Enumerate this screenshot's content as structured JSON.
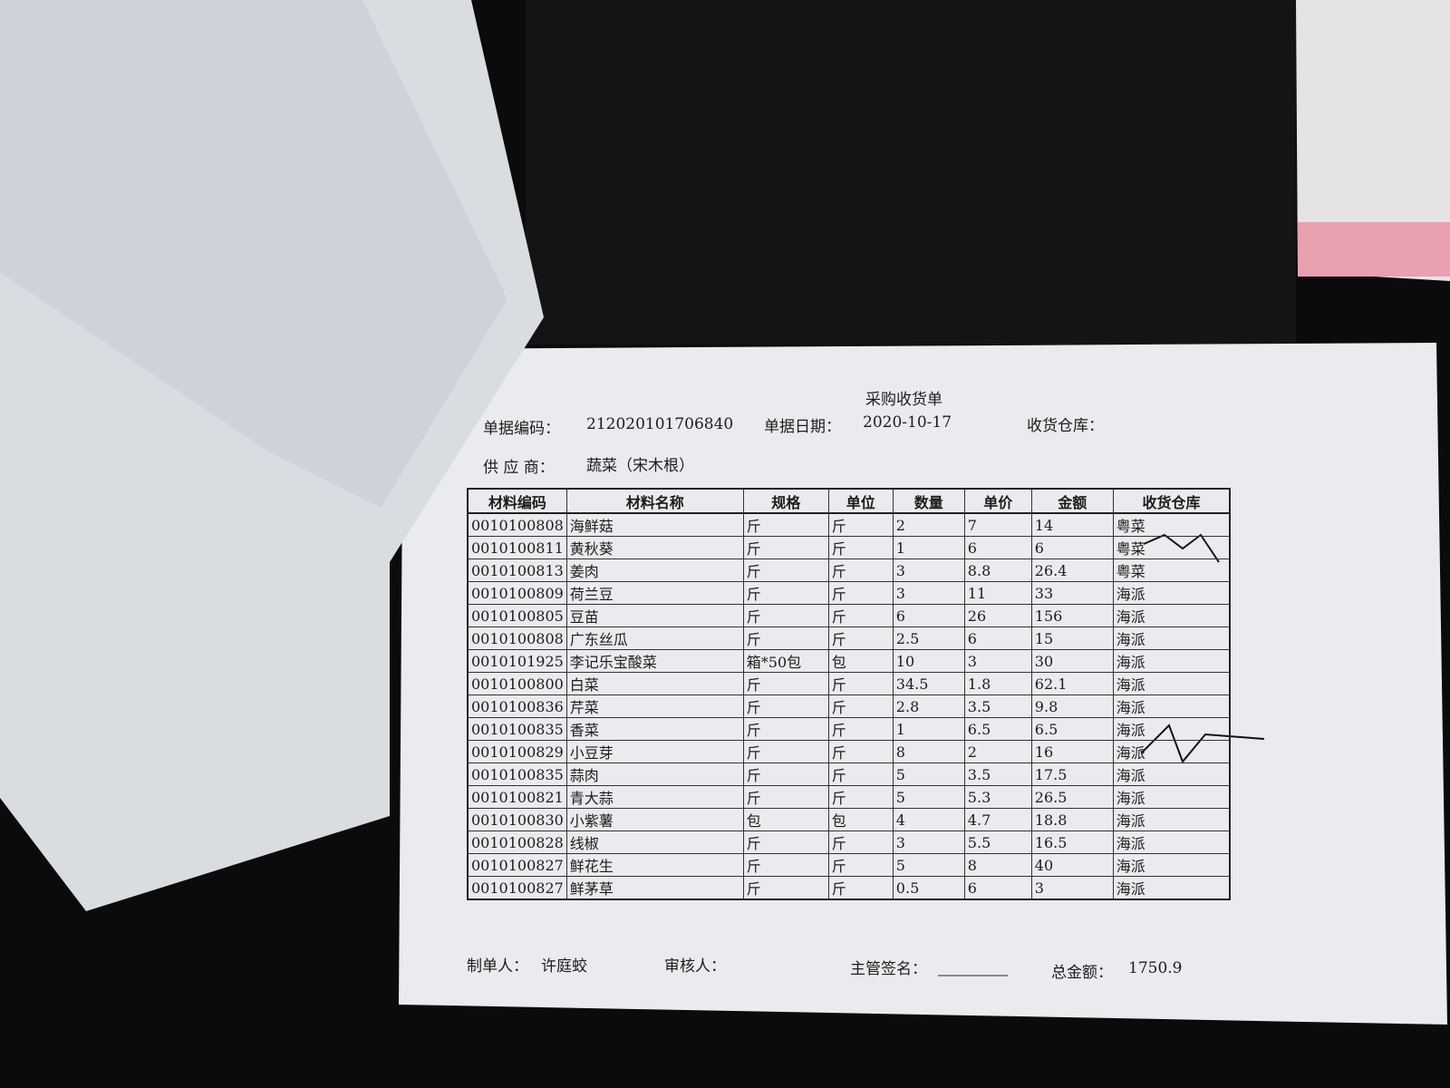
{
  "document": {
    "title": "采购收货单",
    "fields": [
      {
        "label": "单据编码：",
        "value": "212020101706840"
      },
      {
        "label": "单据日期：",
        "value": "2020-10-17"
      },
      {
        "label": "收货仓库："
      },
      {
        "label": "供 应 商：",
        "value": "蔬菜（宋木根）"
      }
    ],
    "table": {
      "columns": [
        "材料编码",
        "材料名称",
        "规格",
        "单位",
        "数量",
        "单价",
        "金额",
        "收货仓库"
      ],
      "rows": [
        [
          "0010100808",
          "海鲜菇",
          "斤",
          "斤",
          "2",
          "7",
          "14",
          "粤菜"
        ],
        [
          "0010100811",
          "黄秋葵",
          "斤",
          "斤",
          "1",
          "6",
          "6",
          "粤菜"
        ],
        [
          "0010100813",
          "姜肉",
          "斤",
          "斤",
          "3",
          "8.8",
          "26.4",
          "粤菜"
        ],
        [
          "0010100809",
          "荷兰豆",
          "斤",
          "斤",
          "3",
          "11",
          "33",
          "海派"
        ],
        [
          "0010100805",
          "豆苗",
          "斤",
          "斤",
          "6",
          "26",
          "156",
          "海派"
        ],
        [
          "0010100808",
          "广东丝瓜",
          "斤",
          "斤",
          "2.5",
          "6",
          "15",
          "海派"
        ],
        [
          "0010101925",
          "李记乐宝酸菜",
          "箱*50包",
          "包",
          "10",
          "3",
          "30",
          "海派"
        ],
        [
          "0010100800",
          "白菜",
          "斤",
          "斤",
          "34.5",
          "1.8",
          "62.1",
          "海派"
        ],
        [
          "0010100836",
          "芹菜",
          "斤",
          "斤",
          "2.8",
          "3.5",
          "9.8",
          "海派"
        ],
        [
          "0010100835",
          "香菜",
          "斤",
          "斤",
          "1",
          "6.5",
          "6.5",
          "海派"
        ],
        [
          "0010100829",
          "小豆芽",
          "斤",
          "斤",
          "8",
          "2",
          "16",
          "海派"
        ],
        [
          "0010100835",
          "蒜肉",
          "斤",
          "斤",
          "5",
          "3.5",
          "17.5",
          "海派"
        ],
        [
          "0010100821",
          "青大蒜",
          "斤",
          "斤",
          "5",
          "5.3",
          "26.5",
          "海派"
        ],
        [
          "0010100830",
          "小紫薯",
          "包",
          "包",
          "4",
          "4.7",
          "18.8",
          "海派"
        ],
        [
          "0010100828",
          "线椒",
          "斤",
          "斤",
          "3",
          "5.5",
          "16.5",
          "海派"
        ],
        [
          "0010100827",
          "鲜花生",
          "斤",
          "斤",
          "5",
          "8",
          "40",
          "海派"
        ],
        [
          "0010100827",
          "鲜茅草",
          "斤",
          "斤",
          "0.5",
          "6",
          "3",
          "海派"
        ]
      ]
    },
    "footer": [
      {
        "label": "制单人：",
        "value": "许庭蛟"
      },
      {
        "label": "审核人："
      },
      {
        "label": "主管签名："
      },
      {
        "label": "总金额：",
        "value": "1750.9"
      }
    ]
  }
}
